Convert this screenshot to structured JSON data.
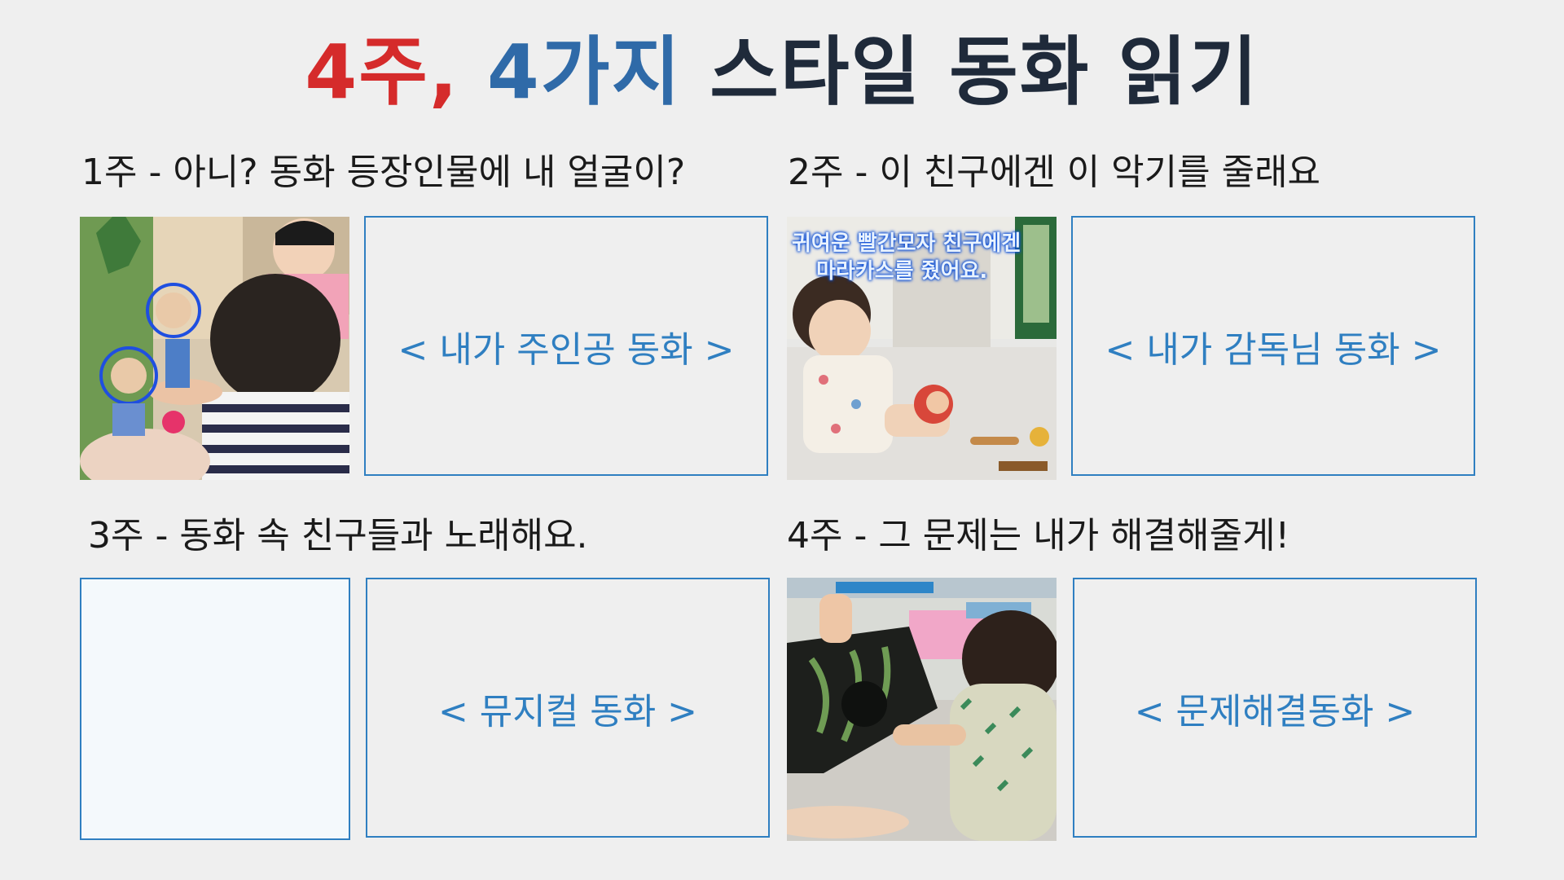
{
  "title": {
    "part1": "4주,",
    "part2": "4가지",
    "part3": "스타일 동화 읽기"
  },
  "weeks": [
    {
      "heading": "1주 - 아니? 동화 등장인물에 내 얼굴이?",
      "label": "< 내가 주인공 동화 >"
    },
    {
      "heading": "2주 - 이 친구에겐 이 악기를 줄래요",
      "label": "< 내가 감독님 동화 >",
      "photo_caption_line1": "귀여운 빨간모자 친구에겐",
      "photo_caption_line2": "마라카스를 줬어요."
    },
    {
      "heading": "3주 - 동화 속 친구들과 노래해요.",
      "label": "< 뮤지컬 동화 >"
    },
    {
      "heading": "4주 - 그 문제는 내가 해결해줄게!",
      "label": "< 문제해결동화 >"
    }
  ],
  "colors": {
    "red": "#d52b2b",
    "blue": "#2f6aa8",
    "accent": "#2f7fc1",
    "background": "#efefef"
  }
}
